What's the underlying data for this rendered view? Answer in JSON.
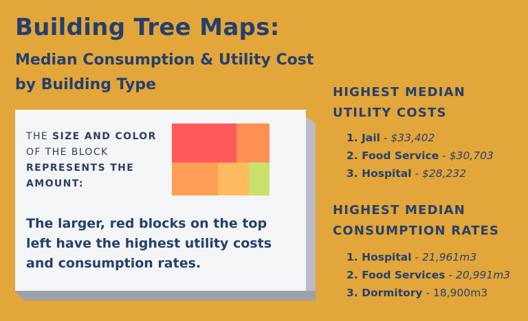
{
  "header": {
    "title": "Building Tree Maps:",
    "subtitle_line1": "Median Consumption & Utility Cost",
    "subtitle_line2": "by Building Type"
  },
  "legend": {
    "part1": "THE ",
    "part2": "SIZE AND COLOR",
    "part3": " OF THE BLOCK ",
    "part4": "REPRESENTS THE AMOUNT:",
    "description": "The larger, red blocks on the top left have the highest utility costs and consumption rates.",
    "colors": [
      "#ff5a5a",
      "#ff8f52",
      "#ff9f55",
      "#ffbc5e",
      "#c9e06b"
    ]
  },
  "utility_costs": {
    "heading_line1": "HIGHEST MEDIAN",
    "heading_line2": "UTILITY COSTS",
    "items": [
      {
        "rank": "1.",
        "name": "Jail",
        "value": "$33,402"
      },
      {
        "rank": "2.",
        "name": "Food Service",
        "value": "$30,703"
      },
      {
        "rank": "3.",
        "name": "Hospital",
        "value": "$28,232"
      }
    ]
  },
  "consumption": {
    "heading_line1": "HIGHEST MEDIAN",
    "heading_line2": "CONSUMPTION RATES",
    "items": [
      {
        "rank": "1.",
        "name": "Hospital",
        "value": "21,961m3"
      },
      {
        "rank": "2.",
        "name": "Food Services",
        "value": "20,991m3"
      },
      {
        "rank": "3.",
        "name": "Dormitory",
        "value": "18,900m3"
      }
    ]
  }
}
